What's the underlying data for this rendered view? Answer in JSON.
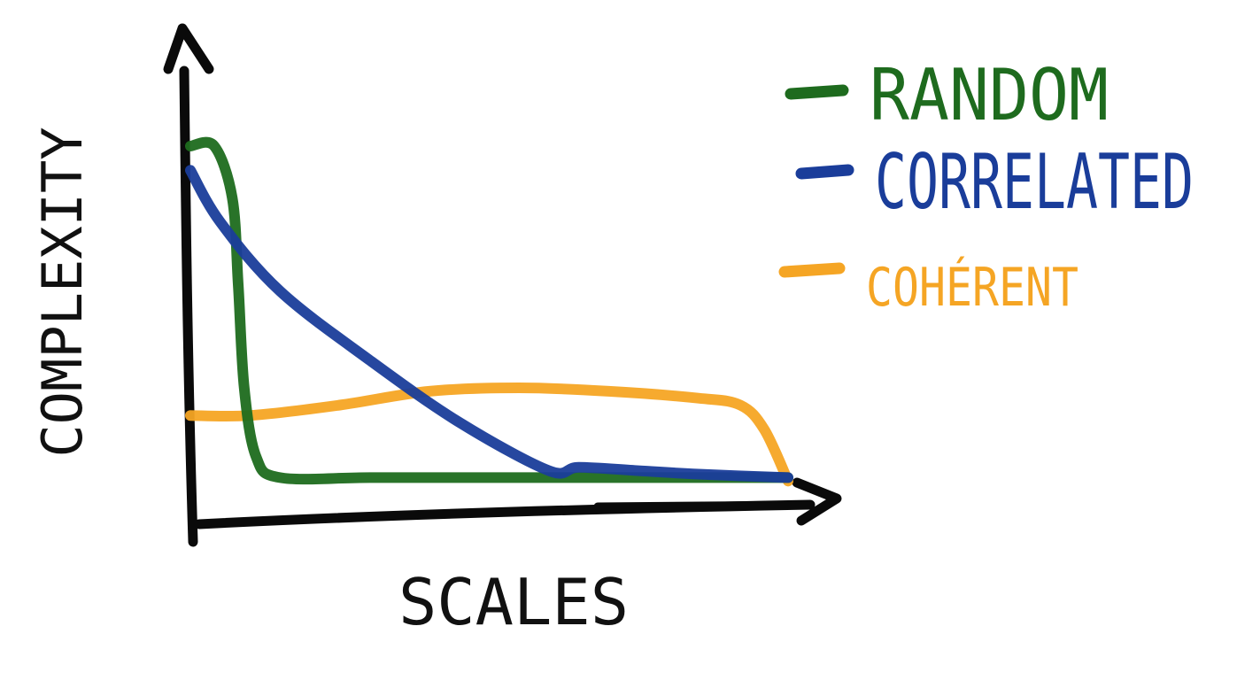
{
  "chart_data": {
    "type": "line",
    "xlabel": "SCALES",
    "ylabel": "COMPLEXITY",
    "xlim": [
      0,
      1
    ],
    "ylim": [
      0,
      1
    ],
    "grid": false,
    "legend_placement": "top-right",
    "series": [
      {
        "name": "RANDOM",
        "color": "#1e6b1e",
        "x": [
          0.0,
          0.04,
          0.07,
          0.08,
          0.09,
          0.11,
          0.15,
          0.3,
          0.5,
          0.7,
          1.0
        ],
        "y": [
          1.0,
          1.0,
          0.85,
          0.6,
          0.3,
          0.1,
          0.04,
          0.04,
          0.04,
          0.04,
          0.04
        ]
      },
      {
        "name": "CORRELATED",
        "color": "#1a3d9a",
        "x": [
          0.0,
          0.05,
          0.15,
          0.3,
          0.45,
          0.6,
          0.65,
          0.75,
          0.85,
          1.0
        ],
        "y": [
          0.93,
          0.78,
          0.58,
          0.38,
          0.2,
          0.06,
          0.07,
          0.06,
          0.05,
          0.04
        ]
      },
      {
        "name": "COHÉRENT",
        "color": "#f5a524",
        "x": [
          0.0,
          0.1,
          0.25,
          0.4,
          0.55,
          0.7,
          0.85,
          0.92,
          0.96,
          1.0
        ],
        "y": [
          0.22,
          0.22,
          0.25,
          0.29,
          0.3,
          0.29,
          0.27,
          0.25,
          0.18,
          0.03
        ]
      }
    ]
  }
}
